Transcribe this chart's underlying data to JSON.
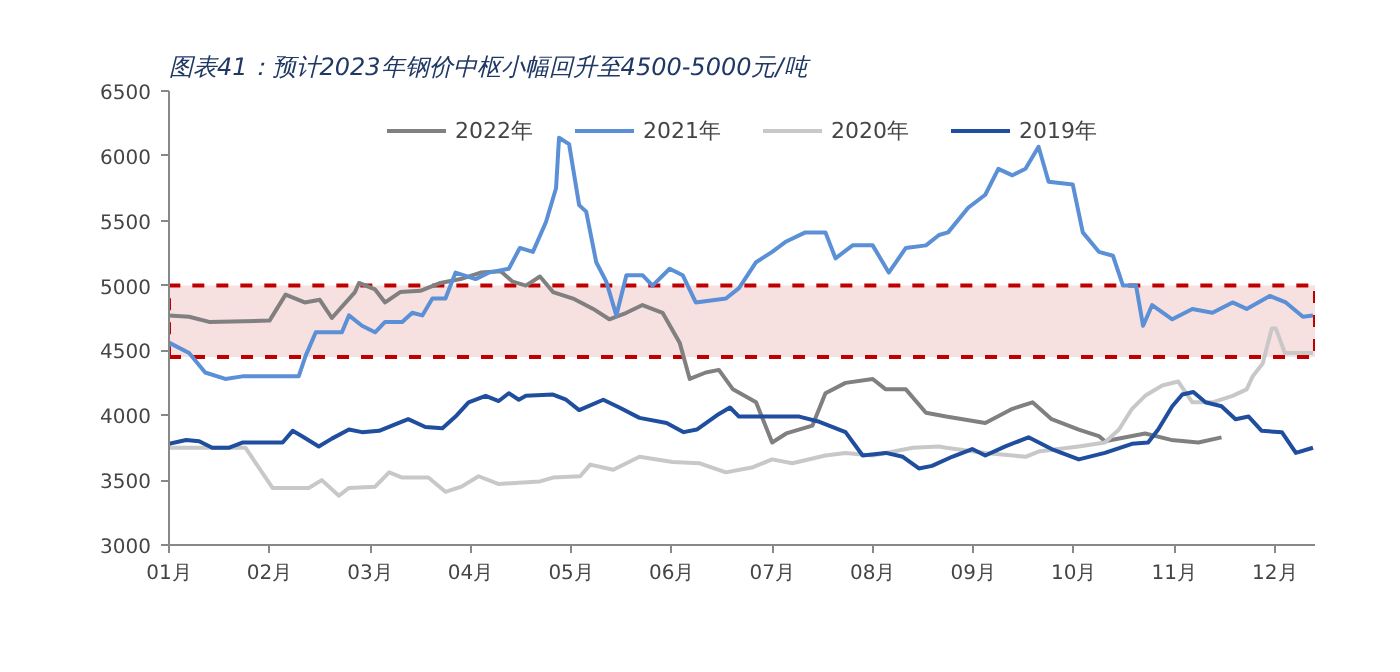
{
  "chart_data": {
    "type": "line",
    "title": "图表41：预计2023年钢价中枢小幅回升至4500-5000元/吨",
    "xlim": [
      1,
      12.4
    ],
    "xticks": [
      {
        "value": 1,
        "label": "01月"
      },
      {
        "value": 2,
        "label": "02月"
      },
      {
        "value": 3,
        "label": "03月"
      },
      {
        "value": 4,
        "label": "04月"
      },
      {
        "value": 5,
        "label": "05月"
      },
      {
        "value": 6,
        "label": "06月"
      },
      {
        "value": 7,
        "label": "07月"
      },
      {
        "value": 8,
        "label": "08月"
      },
      {
        "value": 9,
        "label": "09月"
      },
      {
        "value": 10,
        "label": "10月"
      },
      {
        "value": 11,
        "label": "11月"
      },
      {
        "value": 12,
        "label": "12月"
      }
    ],
    "ylim": [
      3000,
      6500
    ],
    "yticks": [
      3000,
      3500,
      4000,
      4500,
      5000,
      5500,
      6000,
      6500
    ],
    "grid": false,
    "legend": "top",
    "line_style": "solid",
    "marker": "none",
    "bands": [
      {
        "axis": "y",
        "from": 4450,
        "to": 5000,
        "color": "#c00000"
      }
    ],
    "series": [
      {
        "name": "2022年",
        "color": "#808080",
        "x": [
          1.0,
          1.2,
          1.4,
          2.0,
          2.16,
          2.35,
          2.5,
          2.62,
          2.85,
          2.89,
          3.05,
          3.15,
          3.3,
          3.5,
          3.7,
          3.9,
          4.1,
          4.3,
          4.42,
          4.55,
          4.69,
          4.82,
          5.02,
          5.22,
          5.38,
          5.55,
          5.71,
          5.91,
          6.08,
          6.18,
          6.34,
          6.47,
          6.61,
          6.84,
          7.0,
          7.14,
          7.4,
          7.53,
          7.73,
          8.0,
          8.13,
          8.33,
          8.53,
          8.73,
          9.12,
          9.39,
          9.59,
          9.78,
          10.05,
          10.25,
          10.31,
          10.71,
          10.97,
          11.24,
          11.47
        ],
        "values": [
          4770,
          4760,
          4720,
          4730,
          4930,
          4870,
          4890,
          4750,
          4950,
          5020,
          4970,
          4870,
          4950,
          4960,
          5020,
          5050,
          5100,
          5110,
          5030,
          5000,
          5070,
          4950,
          4900,
          4820,
          4740,
          4790,
          4850,
          4790,
          4560,
          4280,
          4330,
          4350,
          4200,
          4100,
          3790,
          3860,
          3920,
          4170,
          4250,
          4280,
          4200,
          4200,
          4020,
          3990,
          3940,
          4050,
          4100,
          3970,
          3890,
          3840,
          3800,
          3860,
          3810,
          3790,
          3830
        ]
      },
      {
        "name": "2021年",
        "color": "#5b8fd6",
        "x": [
          1.0,
          1.2,
          1.36,
          1.56,
          1.73,
          2.29,
          2.36,
          2.46,
          2.72,
          2.79,
          2.92,
          3.05,
          3.15,
          3.32,
          3.42,
          3.52,
          3.62,
          3.75,
          3.85,
          4.05,
          4.18,
          4.38,
          4.49,
          4.62,
          4.75,
          4.85,
          4.88,
          4.98,
          5.08,
          5.15,
          5.25,
          5.35,
          5.45,
          5.55,
          5.71,
          5.81,
          5.98,
          6.11,
          6.24,
          6.54,
          6.67,
          6.84,
          7.0,
          7.14,
          7.33,
          7.53,
          7.63,
          7.8,
          8.0,
          8.16,
          8.33,
          8.53,
          8.66,
          8.75,
          8.95,
          9.12,
          9.25,
          9.39,
          9.52,
          9.65,
          9.75,
          9.99,
          10.09,
          10.25,
          10.39,
          10.49,
          10.62,
          10.69,
          10.78,
          10.98,
          11.18,
          11.38,
          11.58,
          11.72,
          11.95,
          12.11,
          12.28,
          12.38
        ],
        "values": [
          4560,
          4480,
          4330,
          4280,
          4300,
          4300,
          4460,
          4640,
          4640,
          4770,
          4690,
          4640,
          4720,
          4720,
          4790,
          4770,
          4900,
          4900,
          5100,
          5050,
          5100,
          5130,
          5290,
          5260,
          5490,
          5750,
          6140,
          6090,
          5620,
          5570,
          5180,
          5030,
          4770,
          5080,
          5080,
          5000,
          5130,
          5080,
          4870,
          4900,
          4980,
          5180,
          5260,
          5340,
          5410,
          5410,
          5210,
          5310,
          5310,
          5100,
          5290,
          5310,
          5390,
          5410,
          5600,
          5700,
          5900,
          5850,
          5900,
          6070,
          5800,
          5780,
          5410,
          5260,
          5230,
          5000,
          5000,
          4690,
          4850,
          4740,
          4820,
          4790,
          4870,
          4820,
          4920,
          4870,
          4760,
          4770
        ]
      },
      {
        "name": "2020年",
        "color": "#c8c8c8",
        "x": [
          1.0,
          1.76,
          2.03,
          2.39,
          2.52,
          2.69,
          2.79,
          3.05,
          3.19,
          3.32,
          3.58,
          3.75,
          3.91,
          4.08,
          4.28,
          4.48,
          4.69,
          4.82,
          5.09,
          5.19,
          5.42,
          5.68,
          6.01,
          6.28,
          6.54,
          6.81,
          7.0,
          7.2,
          7.53,
          7.73,
          8.0,
          8.4,
          8.66,
          8.73,
          9.12,
          9.52,
          9.65,
          10.05,
          10.31,
          10.45,
          10.58,
          10.71,
          10.88,
          11.04,
          11.18,
          11.38,
          11.58,
          11.72,
          11.78,
          11.88,
          11.97,
          12.01,
          12.1,
          12.38
        ],
        "values": [
          3750,
          3750,
          3440,
          3440,
          3500,
          3380,
          3440,
          3450,
          3560,
          3520,
          3520,
          3410,
          3450,
          3530,
          3470,
          3480,
          3490,
          3520,
          3530,
          3620,
          3580,
          3680,
          3640,
          3630,
          3560,
          3600,
          3660,
          3630,
          3690,
          3710,
          3690,
          3750,
          3760,
          3750,
          3710,
          3680,
          3720,
          3760,
          3790,
          3890,
          4050,
          4150,
          4230,
          4260,
          4100,
          4100,
          4150,
          4200,
          4300,
          4400,
          4670,
          4670,
          4480,
          4480
        ]
      },
      {
        "name": "2019年",
        "color": "#1f4e9e",
        "x": [
          1.0,
          1.17,
          1.3,
          1.43,
          1.6,
          1.73,
          2.13,
          2.23,
          2.32,
          2.49,
          2.62,
          2.79,
          2.92,
          3.09,
          3.25,
          3.38,
          3.55,
          3.72,
          3.85,
          3.98,
          4.15,
          4.28,
          4.38,
          4.48,
          4.55,
          4.82,
          4.95,
          5.08,
          5.32,
          5.48,
          5.68,
          5.95,
          6.12,
          6.25,
          6.45,
          6.58,
          6.67,
          7.0,
          7.27,
          7.47,
          7.73,
          7.9,
          8.13,
          8.3,
          8.46,
          8.59,
          8.79,
          8.99,
          9.12,
          9.32,
          9.55,
          9.78,
          10.05,
          10.31,
          10.58,
          10.74,
          10.84,
          10.98,
          11.08,
          11.19,
          11.31,
          11.47,
          11.61,
          11.74,
          11.87,
          12.07,
          12.21,
          12.38
        ],
        "values": [
          3780,
          3810,
          3800,
          3750,
          3750,
          3790,
          3790,
          3880,
          3840,
          3760,
          3820,
          3890,
          3870,
          3880,
          3930,
          3970,
          3910,
          3900,
          3990,
          4100,
          4150,
          4110,
          4170,
          4120,
          4150,
          4160,
          4120,
          4040,
          4120,
          4060,
          3980,
          3940,
          3870,
          3890,
          4000,
          4060,
          3990,
          3990,
          3990,
          3950,
          3870,
          3690,
          3710,
          3680,
          3590,
          3610,
          3680,
          3740,
          3690,
          3760,
          3830,
          3740,
          3660,
          3710,
          3780,
          3790,
          3890,
          4070,
          4160,
          4180,
          4100,
          4070,
          3970,
          3990,
          3880,
          3870,
          3710,
          3750
        ]
      }
    ]
  }
}
